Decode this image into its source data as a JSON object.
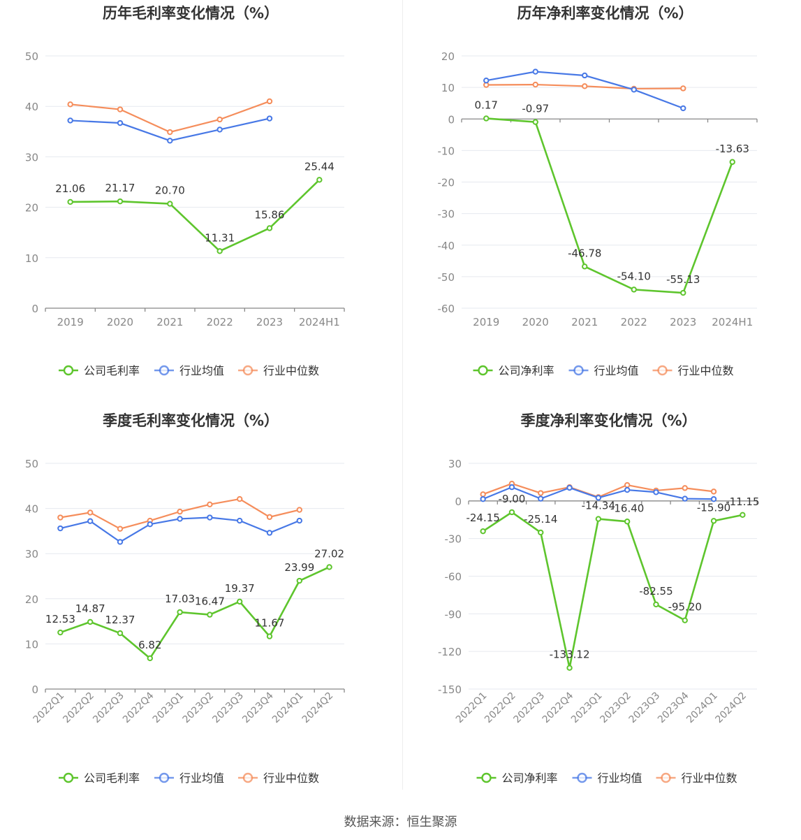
{
  "footer": "数据来源：恒生聚源",
  "colors": {
    "company": "#5ec52d",
    "avg": "#4778e6",
    "median": "#f58d5b",
    "grid": "#e6e9ef",
    "axis": "#888888",
    "label": "#888888",
    "value": "#333333"
  },
  "chart_data": [
    {
      "type": "line",
      "title": "历年毛利率变化情况（%）",
      "categories": [
        "2019",
        "2020",
        "2021",
        "2022",
        "2023",
        "2024H1"
      ],
      "ylim": [
        0,
        50
      ],
      "yticks": [
        0,
        10,
        20,
        30,
        40,
        50
      ],
      "series": [
        {
          "name": "公司毛利率",
          "key": "company",
          "values": [
            21.06,
            21.17,
            20.7,
            11.31,
            15.86,
            25.44
          ],
          "labels": [
            "21.06",
            "21.17",
            "20.70",
            "11.31",
            "15.86",
            "25.44"
          ]
        },
        {
          "name": "行业均值",
          "key": "avg",
          "values": [
            37.2,
            36.7,
            33.2,
            35.4,
            37.6,
            null
          ]
        },
        {
          "name": "行业中位数",
          "key": "median",
          "values": [
            40.4,
            39.4,
            34.9,
            37.4,
            41.0,
            null
          ]
        }
      ]
    },
    {
      "type": "line",
      "title": "历年净利率变化情况（%）",
      "categories": [
        "2019",
        "2020",
        "2021",
        "2022",
        "2023",
        "2024H1"
      ],
      "ylim": [
        -60,
        20
      ],
      "yticks": [
        -60,
        -50,
        -40,
        -30,
        -20,
        -10,
        0,
        10,
        20
      ],
      "series": [
        {
          "name": "公司净利率",
          "key": "company",
          "values": [
            0.17,
            -0.97,
            -46.78,
            -54.1,
            -55.13,
            -13.63
          ],
          "labels": [
            "0.17",
            "-0.97",
            "-46.78",
            "-54.10",
            "-55.13",
            "-13.63"
          ]
        },
        {
          "name": "行业均值",
          "key": "avg",
          "values": [
            12.2,
            15.0,
            13.8,
            9.3,
            3.4,
            null
          ]
        },
        {
          "name": "行业中位数",
          "key": "median",
          "values": [
            10.8,
            10.9,
            10.4,
            9.6,
            9.7,
            null
          ]
        }
      ]
    },
    {
      "type": "line",
      "title": "季度毛利率变化情况（%）",
      "categories": [
        "2022Q1",
        "2022Q2",
        "2022Q3",
        "2022Q4",
        "2023Q1",
        "2023Q2",
        "2023Q3",
        "2023Q4",
        "2024Q1",
        "2024Q2"
      ],
      "ylim": [
        0,
        50
      ],
      "yticks": [
        0,
        10,
        20,
        30,
        40,
        50
      ],
      "series": [
        {
          "name": "公司毛利率",
          "key": "company",
          "values": [
            12.53,
            14.87,
            12.37,
            6.82,
            17.03,
            16.47,
            19.37,
            11.67,
            23.99,
            27.02
          ],
          "labels": [
            "12.53",
            "14.87",
            "12.37",
            "6.82",
            "17.03",
            "16.47",
            "19.37",
            "11.67",
            "23.99",
            "27.02"
          ]
        },
        {
          "name": "行业均值",
          "key": "avg",
          "values": [
            35.6,
            37.2,
            32.6,
            36.5,
            37.7,
            38.0,
            37.3,
            34.6,
            37.3,
            null
          ]
        },
        {
          "name": "行业中位数",
          "key": "median",
          "values": [
            38.0,
            39.1,
            35.5,
            37.3,
            39.3,
            40.9,
            42.1,
            38.1,
            39.7,
            null
          ]
        }
      ]
    },
    {
      "type": "line",
      "title": "季度净利率变化情况（%）",
      "categories": [
        "2022Q1",
        "2022Q2",
        "2022Q3",
        "2022Q4",
        "2023Q1",
        "2023Q2",
        "2023Q3",
        "2023Q4",
        "2024Q1",
        "2024Q2"
      ],
      "ylim": [
        -150,
        30
      ],
      "yticks": [
        -150,
        -120,
        -90,
        -60,
        -30,
        0,
        30
      ],
      "series": [
        {
          "name": "公司净利率",
          "key": "company",
          "values": [
            -24.15,
            -9.0,
            -25.14,
            -133.12,
            -14.34,
            -16.4,
            -82.55,
            -95.2,
            -15.9,
            -11.15
          ],
          "labels": [
            "-24.15",
            "-9.00",
            "-25.14",
            "-133.12",
            "-14.34",
            "-16.40",
            "-82.55",
            "-95.20",
            "-15.90",
            "-11.15"
          ]
        },
        {
          "name": "行业均值",
          "key": "avg",
          "values": [
            1.5,
            11.0,
            1.8,
            10.5,
            2.5,
            8.8,
            7.0,
            1.8,
            1.5,
            null
          ]
        },
        {
          "name": "行业中位数",
          "key": "median",
          "values": [
            5.3,
            13.8,
            6.3,
            11.0,
            3.1,
            12.7,
            8.3,
            10.3,
            7.5,
            null
          ]
        }
      ]
    }
  ]
}
